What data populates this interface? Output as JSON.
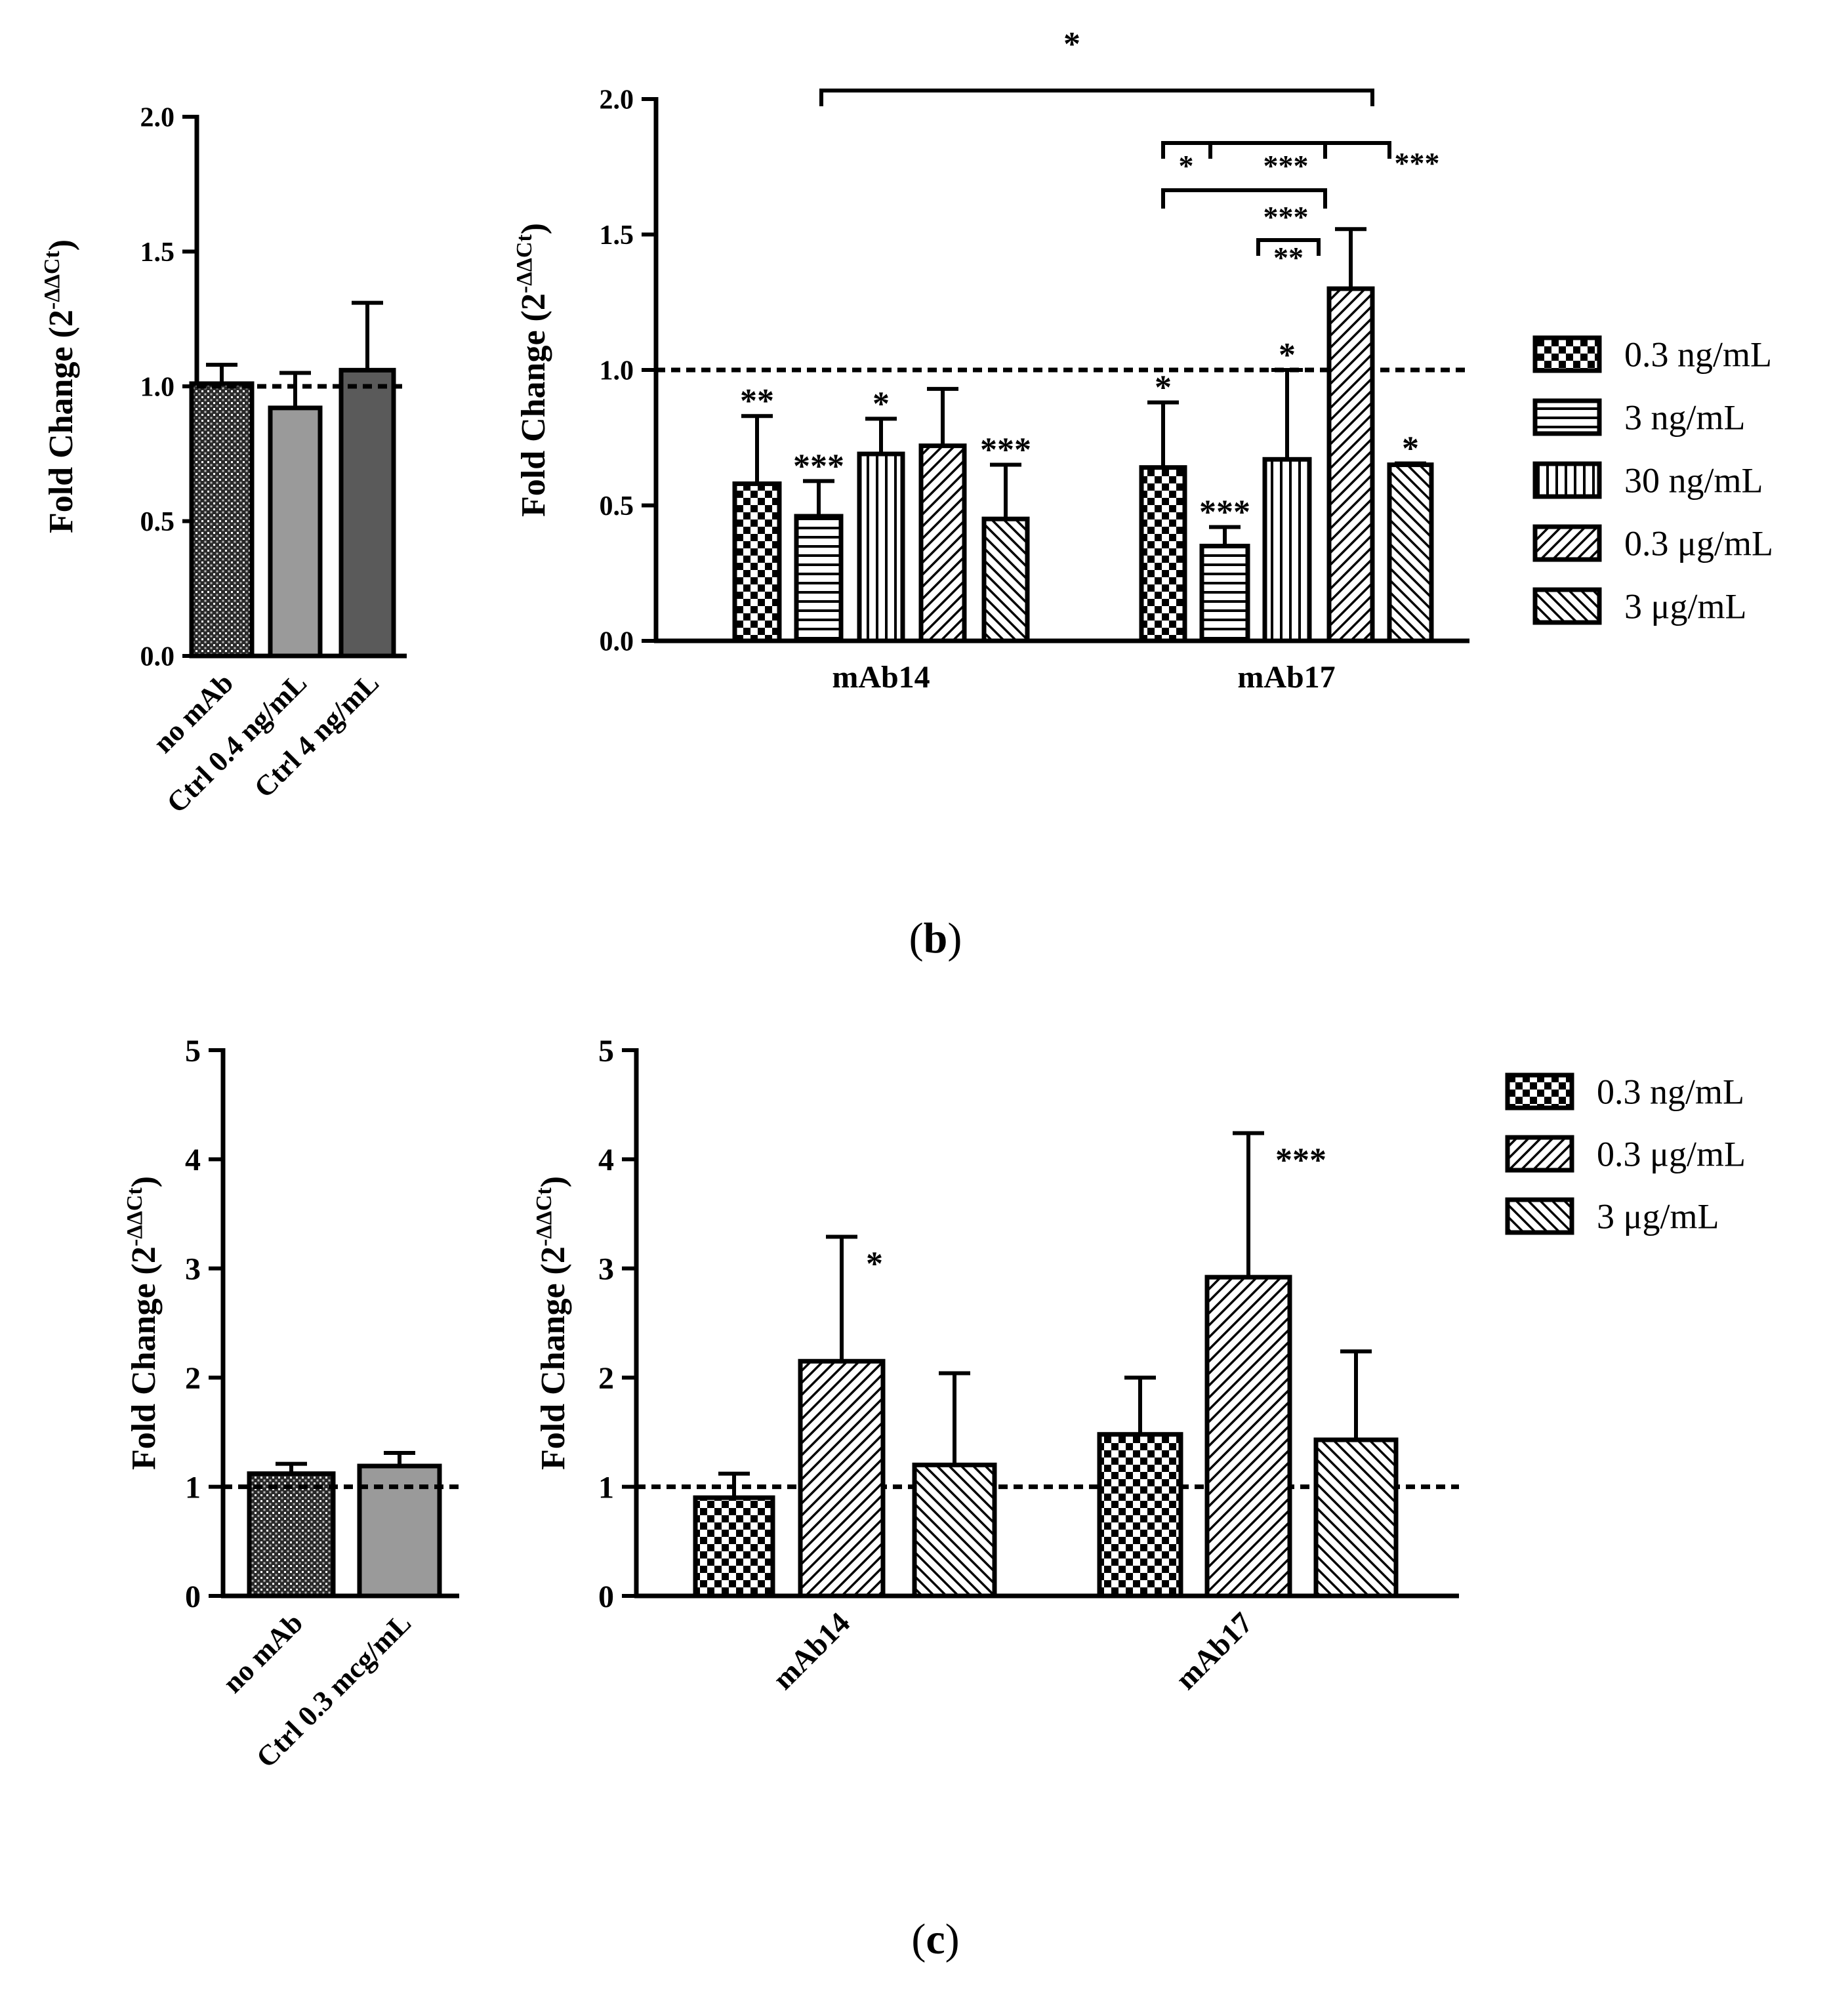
{
  "panel_b_caption": {
    "open": "(",
    "letter": "b",
    "close": ")"
  },
  "panel_c_caption": {
    "open": "(",
    "letter": "c",
    "close": ")"
  },
  "y_label_prefix": "Fold Change (2",
  "y_label_exponent": "-ΔΔCt",
  "y_label_suffix": ")",
  "colors": {
    "ink": "#000000",
    "ctrl_light": "#9a9a9a",
    "ctrl_dark": "#5a5a5a",
    "background": "#ffffff"
  },
  "chart_data": [
    {
      "id": "b_control",
      "type": "bar",
      "ylabel": "Fold Change (2^-ΔΔCt)",
      "ylim": [
        0,
        2.0
      ],
      "yticks": [
        "0.0",
        "0.5",
        "1.0",
        "1.5",
        "2.0"
      ],
      "reference_line": 1.0,
      "categories": [
        "no mAb",
        "Ctrl 0.4 ng/mL",
        "Ctrl 4 ng/mL"
      ],
      "values": [
        1.01,
        0.92,
        1.06
      ],
      "errors": [
        0.07,
        0.13,
        0.25
      ],
      "fills": [
        "dots-fine",
        "gray-light",
        "gray-dark"
      ]
    },
    {
      "id": "b_treatment",
      "type": "bar",
      "ylabel": "Fold Change (2^-ΔΔCt)",
      "ylim": [
        0,
        2.0
      ],
      "yticks": [
        "0.0",
        "0.5",
        "1.0",
        "1.5",
        "2.0"
      ],
      "reference_line": 1.0,
      "categories": [
        "mAb14",
        "mAb17"
      ],
      "series": [
        {
          "name": "0.3 ng/mL",
          "pattern": "checker",
          "values": [
            0.58,
            0.64
          ],
          "errors": [
            0.25,
            0.24
          ],
          "marks": [
            "**",
            "*"
          ]
        },
        {
          "name": "3 ng/mL",
          "pattern": "hlines",
          "values": [
            0.46,
            0.35
          ],
          "errors": [
            0.13,
            0.07
          ],
          "marks": [
            "***",
            "***"
          ]
        },
        {
          "name": "30 ng/mL",
          "pattern": "vlines",
          "values": [
            0.69,
            0.67
          ],
          "errors": [
            0.13,
            0.33
          ],
          "marks": [
            "*",
            "*"
          ]
        },
        {
          "name": "0.3 μg/mL",
          "pattern": "diag-right",
          "values": [
            0.72,
            1.3
          ],
          "errors": [
            0.21,
            0.22
          ],
          "marks": [
            "",
            ""
          ]
        },
        {
          "name": "3 μg/mL",
          "pattern": "diag-left",
          "values": [
            0.45,
            0.65
          ],
          "errors": [
            0.2,
            0.005
          ],
          "marks": [
            "***",
            "*"
          ]
        }
      ],
      "brackets": [
        {
          "label": "*"
        },
        {
          "label": "*"
        },
        {
          "label": "***"
        },
        {
          "label": "***"
        },
        {
          "label": "***"
        },
        {
          "label": "**"
        }
      ],
      "legend": [
        "0.3 ng/mL",
        "3 ng/mL",
        "30 ng/mL",
        "0.3 μg/mL",
        "3 μg/mL"
      ]
    },
    {
      "id": "c_control",
      "type": "bar",
      "ylabel": "Fold Change (2^-ΔΔCt)",
      "ylim": [
        0,
        5
      ],
      "yticks": [
        "0",
        "1",
        "2",
        "3",
        "4",
        "5"
      ],
      "reference_line": 1,
      "categories": [
        "no mAb",
        "Ctrl 0.3 mcg/mL"
      ],
      "values": [
        1.12,
        1.19
      ],
      "errors": [
        0.09,
        0.12
      ],
      "fills": [
        "dots-fine",
        "gray-light"
      ]
    },
    {
      "id": "c_treatment",
      "type": "bar",
      "ylabel": "Fold Change (2^-ΔΔCt)",
      "ylim": [
        0,
        5
      ],
      "yticks": [
        "0",
        "1",
        "2",
        "3",
        "4",
        "5"
      ],
      "reference_line": 1,
      "categories": [
        "mAb14",
        "mAb17"
      ],
      "series": [
        {
          "name": "0.3 ng/mL",
          "pattern": "checker",
          "values": [
            0.9,
            1.48
          ],
          "errors": [
            0.22,
            0.52
          ],
          "marks": [
            "",
            ""
          ]
        },
        {
          "name": "0.3 μg/mL",
          "pattern": "diag-right",
          "values": [
            2.15,
            2.92
          ],
          "errors": [
            1.14,
            1.32
          ],
          "marks": [
            "*",
            "***"
          ]
        },
        {
          "name": "3 μg/mL",
          "pattern": "diag-left",
          "values": [
            1.2,
            1.43
          ],
          "errors": [
            0.84,
            0.81
          ],
          "marks": [
            "",
            ""
          ]
        }
      ],
      "legend": [
        "0.3 ng/mL",
        "0.3 μg/mL",
        "3 μg/mL"
      ]
    }
  ]
}
